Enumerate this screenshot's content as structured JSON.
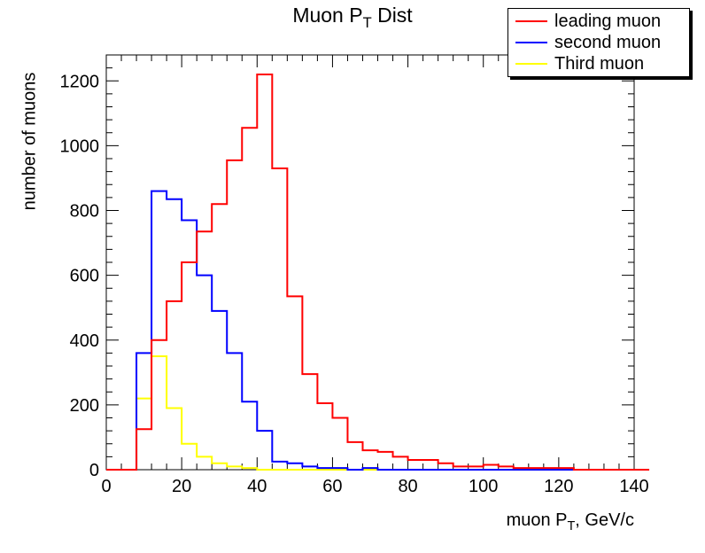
{
  "chart_data": {
    "type": "histogram-step",
    "title": "Muon P",
    "title_sub": "T",
    "title_suffix": " Dist",
    "xlabel": "muon P",
    "xlabel_sub": "T",
    "xlabel_suffix": ", GeV/c",
    "ylabel": "number of muons",
    "xlim": [
      0,
      140
    ],
    "ylim": [
      0,
      1280
    ],
    "x_ticks": [
      "0",
      "20",
      "40",
      "60",
      "80",
      "100",
      "120",
      "140"
    ],
    "y_ticks": [
      "0",
      "200",
      "400",
      "600",
      "800",
      "1000",
      "1200"
    ],
    "bin_width": 4,
    "grid": false,
    "legend_position": "top-right",
    "series": [
      {
        "name": "leading muon",
        "color": "#ff0000",
        "values": [
          0,
          0,
          125,
          400,
          520,
          640,
          735,
          820,
          955,
          1055,
          1220,
          930,
          535,
          295,
          205,
          160,
          85,
          60,
          55,
          40,
          30,
          30,
          20,
          10,
          10,
          15,
          10,
          5,
          5,
          5,
          5,
          0,
          0,
          0,
          0,
          0
        ]
      },
      {
        "name": "second muon",
        "color": "#0000ff",
        "values": [
          0,
          0,
          360,
          860,
          835,
          770,
          600,
          490,
          360,
          210,
          120,
          25,
          20,
          10,
          5,
          5,
          0,
          5,
          0,
          0,
          0,
          0,
          0,
          0,
          0,
          0,
          0,
          0,
          0,
          0,
          0,
          0,
          0,
          0,
          0,
          0
        ]
      },
      {
        "name": "Third muon",
        "color": "#ffff00",
        "values": [
          0,
          0,
          220,
          350,
          190,
          80,
          40,
          20,
          10,
          5,
          0,
          0,
          0,
          0,
          0,
          0,
          0,
          0,
          0,
          0,
          0,
          0,
          0,
          0,
          0,
          0,
          0,
          0,
          0,
          0,
          0,
          0,
          0,
          0,
          0,
          0
        ]
      }
    ]
  }
}
